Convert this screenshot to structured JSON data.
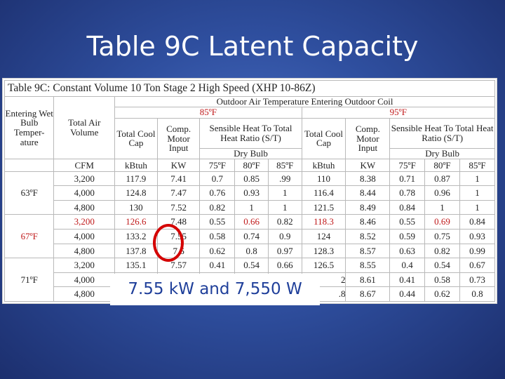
{
  "slide": {
    "title": "Table 9C Latent Capacity"
  },
  "table": {
    "title": "Table 9C: Constant Volume 10 Ton Stage 2 High Speed (XHP 10-86Z)",
    "group_header": "Outdoor Air Temperature Entering Outdoor Coil",
    "temp1": "85ºF",
    "temp2": "95ºF",
    "col_entering": "Entering Wet Bulb Temper-ature",
    "col_total_air": "Total Air Volume",
    "col_total_cool": "Total Cool Cap",
    "col_comp_motor": "Comp. Motor Input",
    "col_sensible_a": "Sensible Heat To Total Heat Ratio (S/T)",
    "col_sensible_b": "Sensible Heat To Total Heat Ratio (S/T)",
    "dry_bulb": "Dry Bulb",
    "units": [
      "CFM",
      "kBtuh",
      "KW",
      "75ºF",
      "80ºF",
      "85ºF",
      "kBtuh",
      "KW",
      "75ºF",
      "80ºF",
      "85ºF"
    ],
    "groups": [
      {
        "label": "63ºF",
        "rows": [
          [
            "3,200",
            "117.9",
            "7.41",
            "0.7",
            "0.85",
            ".99",
            "110",
            "8.38",
            "0.71",
            "0.87",
            "1"
          ],
          [
            "4,000",
            "124.8",
            "7.47",
            "0.76",
            "0.93",
            "1",
            "116.4",
            "8.44",
            "0.78",
            "0.96",
            "1"
          ],
          [
            "4,800",
            "130",
            "7.52",
            "0.82",
            "1",
            "1",
            "121.5",
            "8.49",
            "0.84",
            "1",
            "1"
          ]
        ]
      },
      {
        "label": "67ºF",
        "rows": [
          [
            "3,200",
            "126.6",
            "7.48",
            "0.55",
            "0.66",
            "0.82",
            "118.3",
            "8.46",
            "0.55",
            "0.69",
            "0.84"
          ],
          [
            "4,000",
            "133.2",
            "7.55",
            "0.58",
            "0.74",
            "0.9",
            "124",
            "8.52",
            "0.59",
            "0.75",
            "0.93"
          ],
          [
            "4,800",
            "137.8",
            "7.6",
            "0.62",
            "0.8",
            "0.97",
            "128.3",
            "8.57",
            "0.63",
            "0.82",
            "0.99"
          ]
        ]
      },
      {
        "label": "71ºF",
        "rows": [
          [
            "3,200",
            "135.1",
            "7.57",
            "0.41",
            "0.54",
            "0.66",
            "126.5",
            "8.55",
            "0.4",
            "0.54",
            "0.67"
          ],
          [
            "4,000",
            "",
            "",
            "",
            "",
            "",
            "",
            "8.61",
            "0.41",
            "0.58",
            "0.73"
          ],
          [
            "4,800",
            "",
            "",
            "",
            "",
            "",
            "",
            "8.67",
            "0.44",
            "0.62",
            "0.8"
          ]
        ]
      }
    ],
    "partial_cells": {
      "r8c7": "2",
      "r9c7": ".8"
    }
  },
  "callout": {
    "text": "7.55 kW and 7,550 W"
  },
  "colors": {
    "background": "#2f4f9f",
    "highlight_red": "#c0191a",
    "circle": "#d40000",
    "callout_text": "#1f3f9a"
  }
}
